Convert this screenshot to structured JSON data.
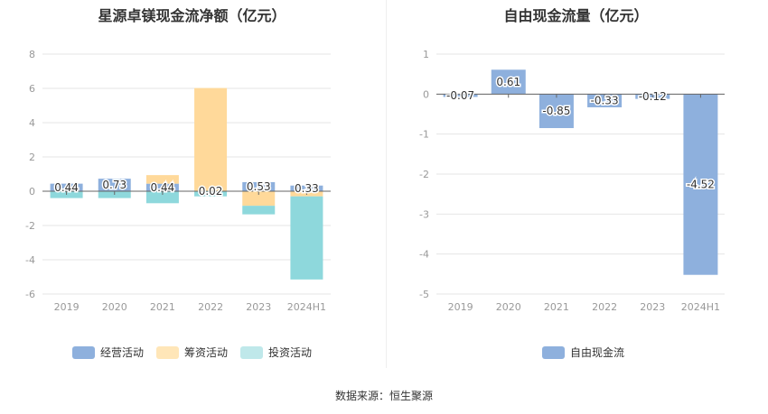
{
  "source_text": "数据来源：恒生聚源",
  "chart_data": [
    {
      "type": "bar",
      "stacked": true,
      "title": "星源卓镁现金流净额（亿元）",
      "categories": [
        "2019",
        "2020",
        "2021",
        "2022",
        "2023",
        "2024H1"
      ],
      "ylim": [
        -6,
        8
      ],
      "yticks": [
        "-6",
        "-4",
        "-2",
        "0",
        "2",
        "4",
        "6",
        "8"
      ],
      "series": [
        {
          "name": "经营活动",
          "color": "#8eb0dd",
          "values": [
            0.44,
            0.73,
            0.44,
            0.02,
            0.53,
            0.33
          ],
          "labels": [
            "0.44",
            "0.73",
            "0.44",
            "0.02",
            "0.53",
            "0.33"
          ]
        },
        {
          "name": "筹资活动",
          "color": "#ffd99a",
          "values": [
            0.0,
            0.0,
            0.5,
            6.0,
            -0.85,
            -0.3
          ]
        },
        {
          "name": "投资活动",
          "color": "#8ed8dc",
          "values": [
            -0.4,
            -0.4,
            -0.7,
            -0.3,
            -0.5,
            -4.85
          ]
        }
      ],
      "legend_position": "bottom",
      "grid": true
    },
    {
      "type": "bar",
      "title": "自由现金流量（亿元）",
      "categories": [
        "2019",
        "2020",
        "2021",
        "2022",
        "2023",
        "2024H1"
      ],
      "ylim": [
        -5,
        1
      ],
      "yticks": [
        "-5",
        "-4",
        "-3",
        "-2",
        "-1",
        "0",
        "1"
      ],
      "series": [
        {
          "name": "自由现金流",
          "color": "#8eb0dd",
          "values": [
            -0.07,
            0.61,
            -0.85,
            -0.33,
            -0.12,
            -4.52
          ],
          "labels": [
            "-0.07",
            "0.61",
            "-0.85",
            "-0.33",
            "-0.12",
            "-4.52"
          ]
        }
      ],
      "legend_position": "bottom",
      "grid": true
    }
  ]
}
